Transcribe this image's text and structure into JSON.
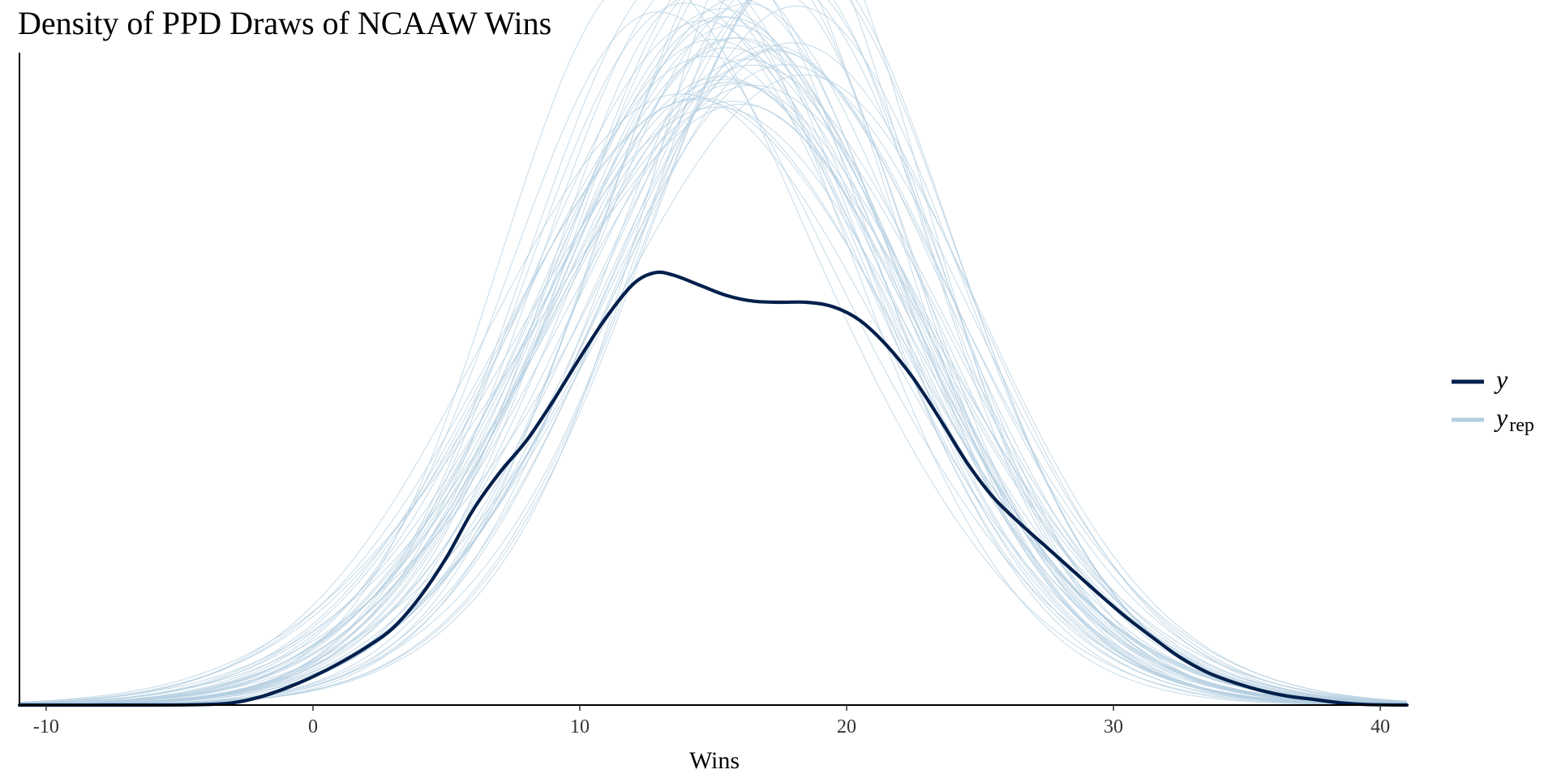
{
  "chart_data": {
    "type": "line",
    "title": "Density of PPD Draws of NCAAW Wins",
    "xlabel": "Wins",
    "ylabel": "",
    "xlim": [
      -11,
      41
    ],
    "ylim": [
      0,
      0.0575
    ],
    "x_ticks": [
      -10,
      0,
      10,
      20,
      30,
      40
    ],
    "x_tick_labels": [
      "-10",
      "0",
      "10",
      "20",
      "30",
      "40"
    ],
    "y_axis_ticks_shown": false,
    "grid": false,
    "legend": {
      "placement": "right",
      "entries": [
        {
          "key": "y",
          "label": "y",
          "subscript": "",
          "color": "#011f4b"
        },
        {
          "key": "yrep",
          "label": "y",
          "subscript": "rep",
          "color": "#b3cde0"
        }
      ]
    },
    "observed": {
      "name": "y",
      "color": "#011f4b",
      "x": [
        -11,
        -6,
        -4,
        -3,
        -2,
        -1,
        0,
        1,
        2,
        3,
        4,
        5,
        6,
        7,
        8,
        9,
        10,
        11,
        12,
        12.8,
        13.5,
        14.5,
        15.5,
        16.5,
        17.5,
        18.5,
        19.5,
        20.5,
        21.5,
        22.5,
        23.5,
        24.5,
        25.5,
        26.5,
        27.5,
        28.5,
        29.5,
        30.5,
        31.5,
        32.5,
        33.5,
        34.5,
        35.5,
        36.5,
        37.5,
        38.5,
        39.5,
        41
      ],
      "y": [
        0.0,
        0.0,
        5e-05,
        0.0002,
        0.0007,
        0.0015,
        0.0025,
        0.0037,
        0.0051,
        0.0068,
        0.0095,
        0.013,
        0.0172,
        0.0205,
        0.0233,
        0.0268,
        0.0306,
        0.0342,
        0.0371,
        0.0381,
        0.0379,
        0.037,
        0.0361,
        0.0356,
        0.0355,
        0.0355,
        0.0351,
        0.0339,
        0.0317,
        0.0288,
        0.0252,
        0.0214,
        0.0183,
        0.016,
        0.0139,
        0.0118,
        0.0097,
        0.0077,
        0.0059,
        0.0042,
        0.0029,
        0.002,
        0.0013,
        0.0008,
        0.0005,
        0.0002,
        5e-05,
        0.0
      ]
    },
    "replicates": {
      "name": "y_rep",
      "color": "#b3cde0",
      "count": 50,
      "mean_range": [
        14.2,
        18.0
      ],
      "sd_range": [
        6.2,
        8.0
      ]
    }
  }
}
